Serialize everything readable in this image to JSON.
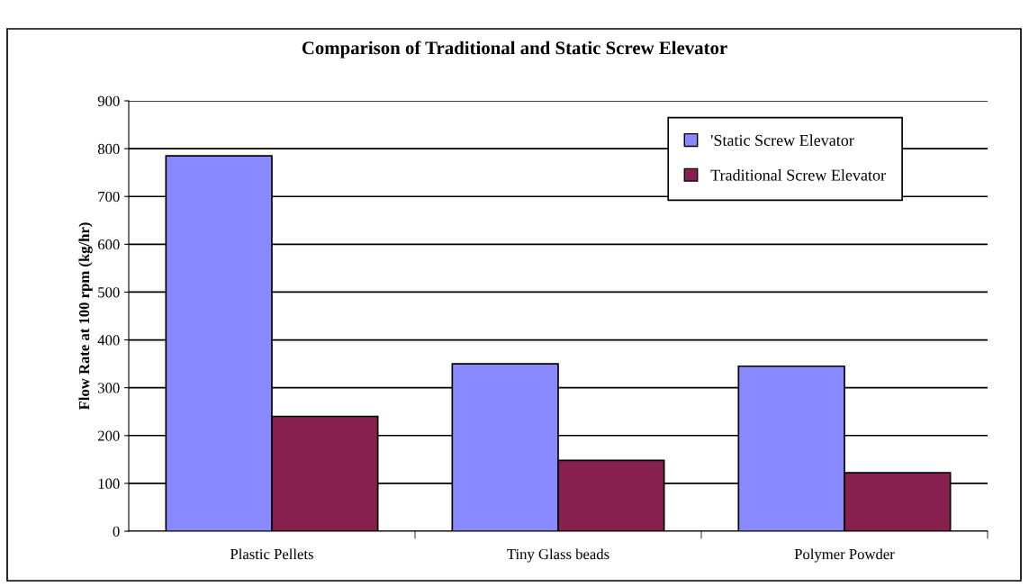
{
  "chart_data": {
    "type": "bar",
    "title": "Comparison of Traditional and Static Screw Elevator",
    "ylabel": "Flow Rate at 100 rpm (kg/hr)",
    "categories": [
      "Plastic Pellets",
      "Tiny Glass beads",
      "Polymer Powder"
    ],
    "series": [
      {
        "name": "'Static Screw Elevator",
        "color": "#8888ff",
        "values": [
          785,
          350,
          345
        ]
      },
      {
        "name": "Traditional Screw Elevator",
        "color": "#87204f",
        "values": [
          240,
          148,
          122
        ]
      }
    ],
    "ylim": [
      0,
      900
    ],
    "yticks": [
      0,
      100,
      200,
      300,
      400,
      500,
      600,
      700,
      800,
      900
    ],
    "grid": "y",
    "legend": "top right"
  }
}
